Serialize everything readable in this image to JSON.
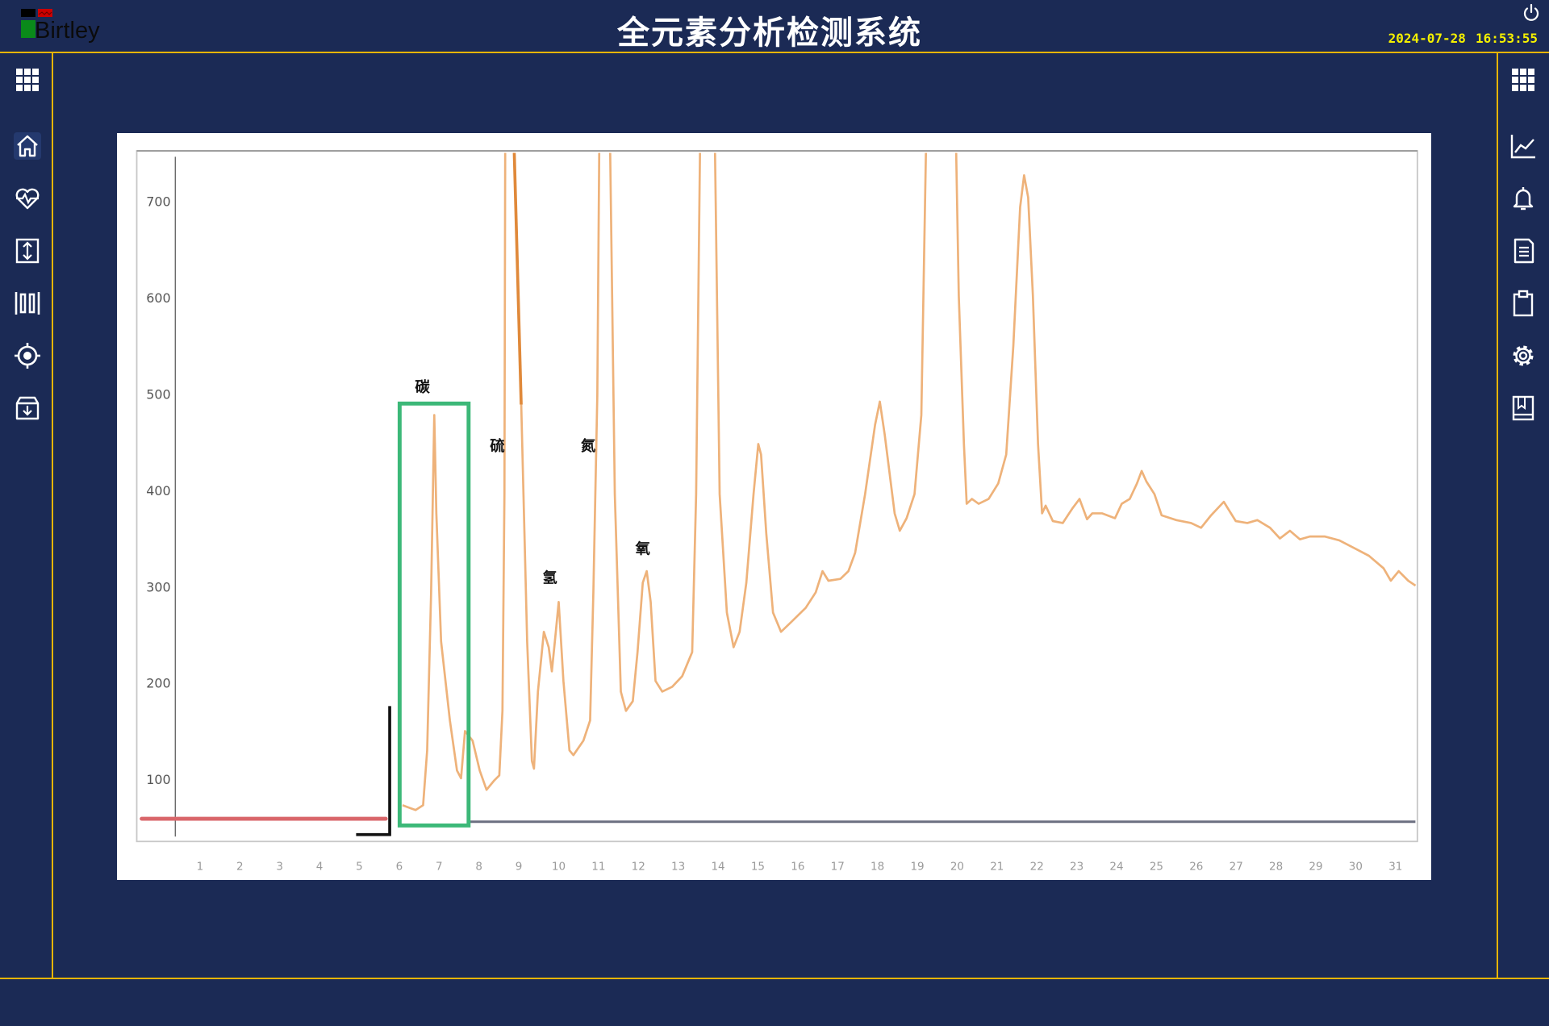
{
  "header": {
    "brand": "Birtley",
    "title": "全元素分析检测系统",
    "date": "2024-07-28",
    "time": "16:53:55",
    "power_icon": "power-icon"
  },
  "sidebar_left": [
    {
      "icon": "grid-menu-icon"
    },
    {
      "icon": "home-icon",
      "active": true
    },
    {
      "icon": "heart-pulse-icon"
    },
    {
      "icon": "vertical-arrows-icon"
    },
    {
      "icon": "barcode-icon"
    },
    {
      "icon": "target-icon"
    },
    {
      "icon": "archive-download-icon"
    }
  ],
  "sidebar_right": [
    {
      "icon": "grid-menu-icon"
    },
    {
      "icon": "line-chart-icon"
    },
    {
      "icon": "bell-icon"
    },
    {
      "icon": "document-icon"
    },
    {
      "icon": "clipboard-icon"
    },
    {
      "icon": "gear-icon"
    },
    {
      "icon": "book-icon"
    }
  ],
  "colors": {
    "background": "#1b2a55",
    "border": "#e6b400",
    "clock": "#f4f000",
    "trace": "#eeb27a",
    "trace_dark": "#e0893a",
    "highlight_box": "#3cb878",
    "baseline_start": "#d9666a",
    "baseline": "#6b6f80"
  },
  "chart_data": {
    "type": "line",
    "title": "",
    "xlabel": "",
    "ylabel": "",
    "xlim": [
      1,
      31
    ],
    "ylim": [
      35,
      752
    ],
    "grid": false,
    "x_ticks": [
      "1",
      "2",
      "3",
      "4",
      "5",
      "6",
      "7",
      "8",
      "9",
      "10",
      "11",
      "12",
      "13",
      "14",
      "15",
      "16",
      "17",
      "18",
      "19",
      "20",
      "21",
      "22",
      "23",
      "24",
      "25",
      "26",
      "27",
      "28",
      "29",
      "30",
      "31"
    ],
    "y_ticks": [
      "100",
      "200",
      "300",
      "400",
      "500",
      "600",
      "700"
    ],
    "series": [
      {
        "points": [
          [
            6.08,
            73
          ],
          [
            6.41,
            68
          ],
          [
            6.6,
            73
          ],
          [
            6.7,
            130
          ],
          [
            6.8,
            294
          ],
          [
            6.88,
            478
          ],
          [
            6.93,
            376
          ],
          [
            7.05,
            243
          ],
          [
            7.27,
            161
          ],
          [
            7.45,
            109
          ],
          [
            7.55,
            101
          ],
          [
            7.65,
            150
          ],
          [
            7.84,
            140
          ],
          [
            8.02,
            109
          ],
          [
            8.19,
            89
          ],
          [
            8.39,
            99
          ],
          [
            8.51,
            104
          ],
          [
            8.59,
            171
          ],
          [
            8.64,
            396
          ],
          [
            8.66,
            760
          ],
          [
            8.88,
            760
          ],
          [
            9.06,
            489
          ],
          [
            9.21,
            243
          ],
          [
            9.33,
            119
          ],
          [
            9.38,
            111
          ],
          [
            9.48,
            191
          ],
          [
            9.63,
            253
          ],
          [
            9.75,
            237
          ],
          [
            9.83,
            212
          ],
          [
            9.93,
            253
          ],
          [
            10.0,
            284
          ],
          [
            10.12,
            202
          ],
          [
            10.27,
            130
          ],
          [
            10.37,
            125
          ],
          [
            10.62,
            140
          ],
          [
            10.79,
            161
          ],
          [
            10.87,
            294
          ],
          [
            10.97,
            499
          ],
          [
            11.02,
            760
          ],
          [
            11.29,
            760
          ],
          [
            11.41,
            396
          ],
          [
            11.56,
            191
          ],
          [
            11.69,
            171
          ],
          [
            11.86,
            181
          ],
          [
            11.98,
            232
          ],
          [
            12.11,
            304
          ],
          [
            12.21,
            316
          ],
          [
            12.31,
            284
          ],
          [
            12.43,
            202
          ],
          [
            12.6,
            191
          ],
          [
            12.85,
            196
          ],
          [
            13.1,
            207
          ],
          [
            13.35,
            232
          ],
          [
            13.45,
            396
          ],
          [
            13.55,
            760
          ],
          [
            13.92,
            760
          ],
          [
            14.04,
            396
          ],
          [
            14.22,
            273
          ],
          [
            14.39,
            237
          ],
          [
            14.54,
            253
          ],
          [
            14.71,
            304
          ],
          [
            14.89,
            396
          ],
          [
            15.01,
            448
          ],
          [
            15.08,
            437
          ],
          [
            15.21,
            355
          ],
          [
            15.38,
            273
          ],
          [
            15.58,
            253
          ],
          [
            15.83,
            263
          ],
          [
            16.2,
            278
          ],
          [
            16.45,
            294
          ],
          [
            16.62,
            316
          ],
          [
            16.77,
            306
          ],
          [
            17.07,
            308
          ],
          [
            17.27,
            316
          ],
          [
            17.44,
            335
          ],
          [
            17.69,
            396
          ],
          [
            17.94,
            468
          ],
          [
            18.06,
            492
          ],
          [
            18.18,
            458
          ],
          [
            18.43,
            376
          ],
          [
            18.56,
            358
          ],
          [
            18.73,
            371
          ],
          [
            18.93,
            396
          ],
          [
            19.1,
            478
          ],
          [
            19.22,
            760
          ],
          [
            19.97,
            760
          ],
          [
            20.04,
            602
          ],
          [
            20.17,
            448
          ],
          [
            20.24,
            386
          ],
          [
            20.37,
            391
          ],
          [
            20.54,
            386
          ],
          [
            20.79,
            391
          ],
          [
            21.03,
            407
          ],
          [
            21.23,
            437
          ],
          [
            21.41,
            550
          ],
          [
            21.58,
            694
          ],
          [
            21.68,
            727
          ],
          [
            21.78,
            704
          ],
          [
            21.9,
            602
          ],
          [
            22.03,
            448
          ],
          [
            22.13,
            376
          ],
          [
            22.22,
            384
          ],
          [
            22.4,
            368
          ],
          [
            22.65,
            366
          ],
          [
            22.89,
            381
          ],
          [
            23.07,
            391
          ],
          [
            23.26,
            370
          ],
          [
            23.39,
            376
          ],
          [
            23.64,
            376
          ],
          [
            23.96,
            371
          ],
          [
            24.13,
            386
          ],
          [
            24.33,
            391
          ],
          [
            24.51,
            407
          ],
          [
            24.63,
            420
          ],
          [
            24.75,
            409
          ],
          [
            24.95,
            396
          ],
          [
            25.13,
            374
          ],
          [
            25.5,
            369
          ],
          [
            25.87,
            366
          ],
          [
            26.12,
            361
          ],
          [
            26.37,
            374
          ],
          [
            26.69,
            388
          ],
          [
            26.99,
            368
          ],
          [
            27.28,
            366
          ],
          [
            27.53,
            369
          ],
          [
            27.85,
            361
          ],
          [
            28.1,
            350
          ],
          [
            28.35,
            358
          ],
          [
            28.6,
            349
          ],
          [
            28.85,
            352
          ],
          [
            29.22,
            352
          ],
          [
            29.59,
            348
          ],
          [
            29.96,
            340
          ],
          [
            30.33,
            332
          ],
          [
            30.7,
            319
          ],
          [
            30.88,
            306
          ],
          [
            31.08,
            316
          ],
          [
            31.32,
            306
          ],
          [
            31.5,
            301
          ]
        ]
      }
    ],
    "highlight": {
      "x": [
        6.01,
        7.74
      ],
      "y": [
        52,
        490
      ],
      "label": "碳"
    },
    "annotations": [
      {
        "text": "碳",
        "x": 6.58,
        "y": 502
      },
      {
        "text": "硫",
        "x": 8.46,
        "y": 441
      },
      {
        "text": "氮",
        "x": 10.74,
        "y": 441
      },
      {
        "text": "氢",
        "x": 9.78,
        "y": 304
      },
      {
        "text": "氧",
        "x": 12.11,
        "y": 334
      }
    ]
  }
}
